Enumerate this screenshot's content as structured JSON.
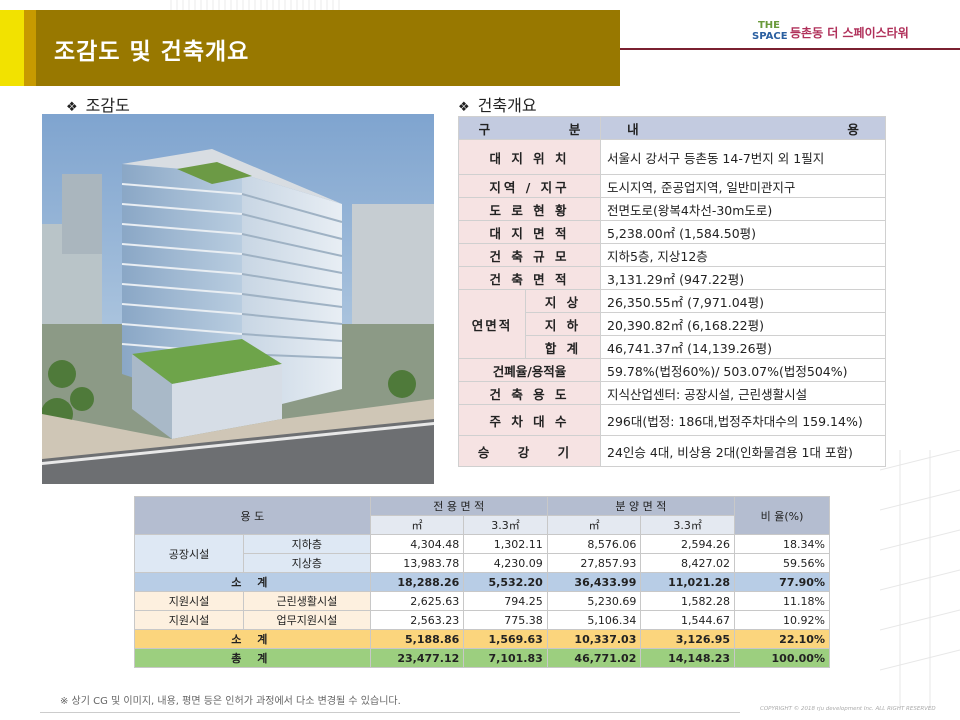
{
  "header": {
    "title": "조감도 및 건축개요",
    "brand_line1": "THE",
    "brand_line2": "SPACE",
    "brand_text": "등촌동 더 스페이스타워"
  },
  "sections": {
    "rendering": "조감도",
    "overview": "건축개요"
  },
  "overview": {
    "header": [
      "구",
      "분",
      "내",
      "용"
    ],
    "rows": [
      {
        "label": "대 지 위 치",
        "value": "서울시 강서구 등촌동 14-7번지 외 1필지"
      },
      {
        "label": "지역 / 지구",
        "value": "도시지역, 준공업지역, 일반미관지구"
      },
      {
        "label": "도 로 현 황",
        "value": "전면도로(왕복4차선-30m도로)"
      },
      {
        "label": "대 지 면 적",
        "value": "5,238.00㎡ (1,584.50평)"
      },
      {
        "label": "건 축 규 모",
        "value": "지하5층, 지상12층"
      },
      {
        "label": "건 축 면 적",
        "value": "3,131.29㎡ (947.22평)"
      }
    ],
    "gfa_label": "연면적",
    "gfa_rows": [
      {
        "label": "지 상",
        "value": "26,350.55㎡ (7,971.04평)"
      },
      {
        "label": "지 하",
        "value": "20,390.82㎡ (6,168.22평)"
      },
      {
        "label": "합 계",
        "value": "46,741.37㎡ (14,139.26평)"
      }
    ],
    "rows2": [
      {
        "label": "건폐율/용적율",
        "value": "59.78%(법정60%)/ 503.07%(법정504%)"
      },
      {
        "label": "건 축 용 도",
        "value": "지식산업센터: 공장시설, 근린생활시설"
      },
      {
        "label": "주 차 대 수",
        "value": "296대(법정: 186대,법정주차대수의 159.14%)"
      },
      {
        "label": "승 강 기",
        "value": "24인승 4대, 비상용 2대(인화물겸용 1대 포함)"
      }
    ]
  },
  "areas": {
    "headers": {
      "use": "용 도",
      "exclusive": "전 용 면 적",
      "sale": "분 양 면 적",
      "ratio": "비 율(%)",
      "m2": "㎡",
      "py": "3.3㎡"
    },
    "factory_label": "공장시설",
    "factory_rows": [
      {
        "floor": "지하층",
        "ex_m2": "4,304.48",
        "ex_py": "1,302.11",
        "sa_m2": "8,576.06",
        "sa_py": "2,594.26",
        "ratio": "18.34%"
      },
      {
        "floor": "지상층",
        "ex_m2": "13,983.78",
        "ex_py": "4,230.09",
        "sa_m2": "27,857.93",
        "sa_py": "8,427.02",
        "ratio": "59.56%"
      }
    ],
    "factory_subtotal": {
      "label": "소 계",
      "ex_m2": "18,288.26",
      "ex_py": "5,532.20",
      "sa_m2": "36,433.99",
      "sa_py": "11,021.28",
      "ratio": "77.90%"
    },
    "support_rows": [
      {
        "cat": "지원시설",
        "sub": "근린생활시설",
        "ex_m2": "2,625.63",
        "ex_py": "794.25",
        "sa_m2": "5,230.69",
        "sa_py": "1,582.28",
        "ratio": "11.18%"
      },
      {
        "cat": "지원시설",
        "sub": "업무지원시설",
        "ex_m2": "2,563.23",
        "ex_py": "775.38",
        "sa_m2": "5,106.34",
        "sa_py": "1,544.67",
        "ratio": "10.92%"
      }
    ],
    "support_subtotal": {
      "label": "소 계",
      "ex_m2": "5,188.86",
      "ex_py": "1,569.63",
      "sa_m2": "10,337.03",
      "sa_py": "3,126.95",
      "ratio": "22.10%"
    },
    "total": {
      "label": "총 계",
      "ex_m2": "23,477.12",
      "ex_py": "7,101.83",
      "sa_m2": "46,771.02",
      "sa_py": "14,148.23",
      "ratio": "100.00%"
    }
  },
  "footnote": "※ 상기 CG 및 이미지, 내용, 평면 등은 인허가 과정에서 다소 변경될 수 있습니다.",
  "copyright": "COPYRIGHT © 2018 rju development Inc. ALL RIGHT RESERVED"
}
